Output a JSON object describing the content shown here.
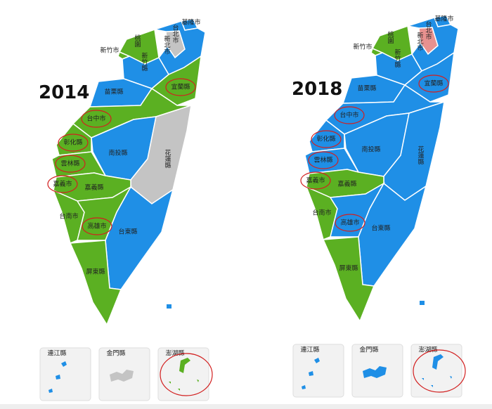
{
  "maps": [
    {
      "title": "2014",
      "regions": [
        {
          "label": "基隆市",
          "color": "#1f8fe6"
        },
        {
          "label": "台北市",
          "color": "#c4c4c4"
        },
        {
          "label": "新北市",
          "color": "#1f8fe6"
        },
        {
          "label": "桃園",
          "color": "#5bb022"
        },
        {
          "label": "新竹縣",
          "color": "#1f8fe6"
        },
        {
          "label": "新竹市",
          "color": "#5bb022"
        },
        {
          "label": "苗栗縣",
          "color": "#1f8fe6"
        },
        {
          "label": "宜蘭縣",
          "color": "#5bb022"
        },
        {
          "label": "台中市",
          "color": "#5bb022"
        },
        {
          "label": "彰化縣",
          "color": "#5bb022"
        },
        {
          "label": "南投縣",
          "color": "#1f8fe6"
        },
        {
          "label": "花蓮縣",
          "color": "#c4c4c4"
        },
        {
          "label": "雲林縣",
          "color": "#5bb022"
        },
        {
          "label": "嘉義市",
          "color": "#5bb022"
        },
        {
          "label": "嘉義縣",
          "color": "#5bb022"
        },
        {
          "label": "台南市",
          "color": "#5bb022"
        },
        {
          "label": "高雄市",
          "color": "#5bb022"
        },
        {
          "label": "台東縣",
          "color": "#1f8fe6"
        },
        {
          "label": "屏東縣",
          "color": "#5bb022"
        }
      ],
      "insets": [
        {
          "label": "連江縣",
          "color": "#1f8fe6"
        },
        {
          "label": "金門縣",
          "color": "#c4c4c4"
        },
        {
          "label": "澎湖縣",
          "color": "#5bb022"
        }
      ]
    },
    {
      "title": "2018",
      "regions": [
        {
          "label": "基隆市",
          "color": "#1f8fe6"
        },
        {
          "label": "台北市",
          "color": "#e8918f"
        },
        {
          "label": "新北市",
          "color": "#1f8fe6"
        },
        {
          "label": "桃園",
          "color": "#5bb022"
        },
        {
          "label": "新竹縣",
          "color": "#1f8fe6"
        },
        {
          "label": "新竹市",
          "color": "#5bb022"
        },
        {
          "label": "苗栗縣",
          "color": "#1f8fe6"
        },
        {
          "label": "宜蘭縣",
          "color": "#1f8fe6"
        },
        {
          "label": "台中市",
          "color": "#1f8fe6"
        },
        {
          "label": "彰化縣",
          "color": "#1f8fe6"
        },
        {
          "label": "南投縣",
          "color": "#1f8fe6"
        },
        {
          "label": "花蓮縣",
          "color": "#1f8fe6"
        },
        {
          "label": "雲林縣",
          "color": "#1f8fe6"
        },
        {
          "label": "嘉義市",
          "color": "#1f8fe6"
        },
        {
          "label": "嘉義縣",
          "color": "#5bb022"
        },
        {
          "label": "台南市",
          "color": "#5bb022"
        },
        {
          "label": "高雄市",
          "color": "#1f8fe6"
        },
        {
          "label": "台東縣",
          "color": "#1f8fe6"
        },
        {
          "label": "屏東縣",
          "color": "#5bb022"
        }
      ],
      "insets": [
        {
          "label": "連江縣",
          "color": "#1f8fe6"
        },
        {
          "label": "金門縣",
          "color": "#1f8fe6"
        },
        {
          "label": "澎湖縣",
          "color": "#1f8fe6"
        }
      ]
    }
  ]
}
